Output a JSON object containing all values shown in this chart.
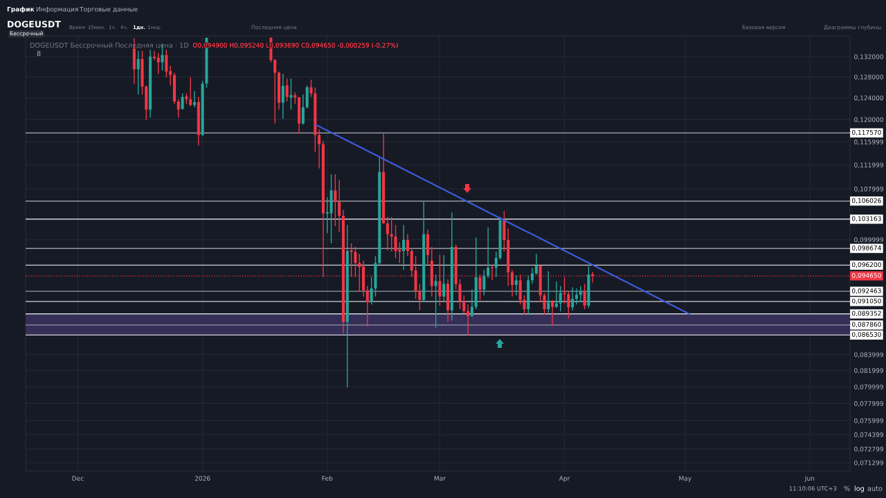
{
  "chart_data": {
    "type": "candlestick",
    "title": "DOGEUSDT Бессрочный Последняя цена · 1D",
    "subtitle": "O0,094900 H0,095240 L0,093690 C0,094650 -0,000259 (-0,27%)",
    "annotations": [
      "График",
      "Информация",
      "Торговые данные",
      "DOGEUSDT",
      "Бессрочный",
      "Время",
      "15мин.",
      "1ч.",
      "4ч.",
      "1дн.",
      "1нед.",
      "Последняя цена",
      "Базовая версия",
      "Диаграммы глубины",
      "11:10:06 UTC+3",
      "%",
      "log",
      "auto",
      "8"
    ],
    "x": [
      "2025-12-15",
      "2025-12-16",
      "2025-12-17",
      "2025-12-18",
      "2025-12-19",
      "2025-12-20",
      "2025-12-21",
      "2025-12-22",
      "2025-12-23",
      "2025-12-24",
      "2025-12-25",
      "2025-12-26",
      "2025-12-27",
      "2025-12-28",
      "2025-12-29",
      "2025-12-30",
      "2025-12-31",
      "2026-01-01",
      "2026-01-02",
      "2026-01-18",
      "2026-01-19",
      "2026-01-20",
      "2026-01-21",
      "2026-01-22",
      "2026-01-23",
      "2026-01-24",
      "2026-01-25",
      "2026-01-26",
      "2026-01-27",
      "2026-01-28",
      "2026-01-29",
      "2026-01-30",
      "2026-01-31",
      "2026-02-01",
      "2026-02-02",
      "2026-02-03",
      "2026-02-04",
      "2026-02-05",
      "2026-02-06",
      "2026-02-07",
      "2026-02-08",
      "2026-02-09",
      "2026-02-10",
      "2026-02-11",
      "2026-02-12",
      "2026-02-13",
      "2026-02-14",
      "2026-02-15",
      "2026-02-16",
      "2026-02-17",
      "2026-02-18",
      "2026-02-19",
      "2026-02-20",
      "2026-02-21",
      "2026-02-22",
      "2026-02-23",
      "2026-02-24",
      "2026-02-25",
      "2026-02-26",
      "2026-02-27",
      "2026-02-28",
      "2026-03-01",
      "2026-03-02",
      "2026-03-03",
      "2026-03-04",
      "2026-03-05",
      "2026-03-06",
      "2026-03-07",
      "2026-03-08",
      "2026-03-09",
      "2026-03-10",
      "2026-03-11",
      "2026-03-12",
      "2026-03-13",
      "2026-03-14",
      "2026-03-15",
      "2026-03-16",
      "2026-03-17",
      "2026-03-18",
      "2026-03-19",
      "2026-03-20",
      "2026-03-21",
      "2026-03-22",
      "2026-03-23",
      "2026-03-24",
      "2026-03-25",
      "2026-03-26",
      "2026-03-27",
      "2026-03-28",
      "2026-03-29",
      "2026-03-30",
      "2026-03-31",
      "2026-04-01",
      "2026-04-02",
      "2026-04-03",
      "2026-04-04",
      "2026-04-05",
      "2026-04-06",
      "2026-04-07",
      "2026-04-08"
    ],
    "ohlc": [
      [
        0.13363,
        0.13575,
        0.12658,
        0.12949
      ],
      [
        0.12949,
        0.13317,
        0.1246,
        0.13154
      ],
      [
        0.13154,
        0.13317,
        0.1246,
        0.12614
      ],
      [
        0.12614,
        0.12636,
        0.1199,
        0.1218
      ],
      [
        0.1218,
        0.1334,
        0.12032,
        0.13201
      ],
      [
        0.13201,
        0.13317,
        0.13131,
        0.13168
      ],
      [
        0.13177,
        0.1327,
        0.12859,
        0.13086
      ],
      [
        0.13086,
        0.13457,
        0.12926,
        0.13233
      ],
      [
        0.13233,
        0.1334,
        0.12791,
        0.12904
      ],
      [
        0.12913,
        0.13017,
        0.12636,
        0.12836
      ],
      [
        0.12836,
        0.12881,
        0.12287,
        0.1233
      ],
      [
        0.1233,
        0.12373,
        0.12032,
        0.1218
      ],
      [
        0.12193,
        0.12482,
        0.1218,
        0.12417
      ],
      [
        0.12425,
        0.12482,
        0.12287,
        0.12373
      ],
      [
        0.12373,
        0.12791,
        0.12244,
        0.12265
      ],
      [
        0.12265,
        0.12526,
        0.12223,
        0.12321
      ],
      [
        0.12321,
        0.12417,
        0.11537,
        0.1172
      ],
      [
        0.1172,
        0.12724,
        0.117,
        0.12671
      ],
      [
        0.12671,
        0.1359,
        0.12592,
        0.1358
      ],
      [
        0.1358,
        0.1359,
        0.13086,
        0.13131
      ],
      [
        0.13131,
        0.13154,
        0.11927,
        0.12881
      ],
      [
        0.12881,
        0.12904,
        0.1218,
        0.12308
      ],
      [
        0.12308,
        0.12859,
        0.12011,
        0.12627
      ],
      [
        0.12636,
        0.12769,
        0.1233,
        0.12417
      ],
      [
        0.12408,
        0.12769,
        0.1218,
        0.12451
      ],
      [
        0.12451,
        0.12504,
        0.12287,
        0.12408
      ],
      [
        0.12408,
        0.12417,
        0.11741,
        0.11927
      ],
      [
        0.11927,
        0.1246,
        0.11906,
        0.12223
      ],
      [
        0.12223,
        0.12636,
        0.12201,
        0.126
      ],
      [
        0.126,
        0.12747,
        0.12417,
        0.12482
      ],
      [
        0.12482,
        0.12592,
        0.11416,
        0.1172
      ],
      [
        0.1172,
        0.11823,
        0.1114,
        0.11557
      ],
      [
        0.11557,
        0.11618,
        0.09451,
        0.10406
      ],
      [
        0.10402,
        0.10664,
        0.10101,
        0.10424
      ],
      [
        0.10406,
        0.11043,
        0.09943,
        0.10776
      ],
      [
        0.10776,
        0.11043,
        0.10207,
        0.10589
      ],
      [
        0.10589,
        0.10947,
        0.10118,
        0.10369
      ],
      [
        0.10369,
        0.1046,
        0.08675,
        0.08828
      ],
      [
        0.08828,
        0.10225,
        0.0799,
        0.09829
      ],
      [
        0.09839,
        0.09943,
        0.09451,
        0.09815
      ],
      [
        0.09815,
        0.09891,
        0.09451,
        0.09652
      ],
      [
        0.09652,
        0.09788,
        0.09239,
        0.09591
      ],
      [
        0.09601,
        0.09685,
        0.09174,
        0.09261
      ],
      [
        0.09261,
        0.0932,
        0.08766,
        0.09094
      ],
      [
        0.09094,
        0.09451,
        0.09062,
        0.09287
      ],
      [
        0.09287,
        0.09753,
        0.09174,
        0.09652
      ],
      [
        0.09652,
        0.11337,
        0.09635,
        0.11082
      ],
      [
        0.11082,
        0.11741,
        0.10243,
        0.1025
      ],
      [
        0.1025,
        0.10351,
        0.09839,
        0.10083
      ],
      [
        0.10083,
        0.10351,
        0.09822,
        0.10048
      ],
      [
        0.10048,
        0.10225,
        0.09719,
        0.09829
      ],
      [
        0.09849,
        0.0996,
        0.09652,
        0.09822
      ],
      [
        0.09829,
        0.10225,
        0.09551,
        0.09995
      ],
      [
        0.09995,
        0.10083,
        0.09753,
        0.09829
      ],
      [
        0.09829,
        0.09874,
        0.09451,
        0.09544
      ],
      [
        0.09544,
        0.09753,
        0.09142,
        0.09255
      ],
      [
        0.09255,
        0.09352,
        0.08983,
        0.09126
      ],
      [
        0.09126,
        0.10608,
        0.09094,
        0.10083
      ],
      [
        0.10083,
        0.10154,
        0.09618,
        0.0977
      ],
      [
        0.09685,
        0.09891,
        0.09174,
        0.0932
      ],
      [
        0.0932,
        0.09484,
        0.08751,
        0.09392
      ],
      [
        0.09392,
        0.0977,
        0.09047,
        0.09174
      ],
      [
        0.09174,
        0.0977,
        0.09094,
        0.09352
      ],
      [
        0.09352,
        0.09418,
        0.08828,
        0.08983
      ],
      [
        0.08983,
        0.10424,
        0.08843,
        0.09891
      ],
      [
        0.09891,
        0.09925,
        0.09271,
        0.09346
      ],
      [
        0.09346,
        0.09418,
        0.08999,
        0.0911
      ],
      [
        0.0911,
        0.0919,
        0.08936,
        0.08974
      ],
      [
        0.08974,
        0.09062,
        0.08644,
        0.08905
      ],
      [
        0.08905,
        0.09271,
        0.0889,
        0.09031
      ],
      [
        0.09031,
        0.1003,
        0.08999,
        0.09444
      ],
      [
        0.09444,
        0.09484,
        0.09126,
        0.09271
      ],
      [
        0.09271,
        0.09551,
        0.0919,
        0.09468
      ],
      [
        0.09468,
        0.10189,
        0.09434,
        0.09584
      ],
      [
        0.09591,
        0.09618,
        0.09402,
        0.09578
      ],
      [
        0.09584,
        0.09822,
        0.09451,
        0.09726
      ],
      [
        0.09726,
        0.10351,
        0.09702,
        0.10297
      ],
      [
        0.10297,
        0.10442,
        0.09822,
        0.09995
      ],
      [
        0.09995,
        0.10172,
        0.0932,
        0.09517
      ],
      [
        0.09517,
        0.09551,
        0.09174,
        0.09336
      ],
      [
        0.09336,
        0.09468,
        0.0919,
        0.09402
      ],
      [
        0.09402,
        0.09484,
        0.09062,
        0.09126
      ],
      [
        0.09126,
        0.0919,
        0.08921,
        0.08999
      ],
      [
        0.08999,
        0.09468,
        0.08921,
        0.09402
      ],
      [
        0.09402,
        0.09584,
        0.09352,
        0.09501
      ],
      [
        0.09501,
        0.09788,
        0.09484,
        0.09611
      ],
      [
        0.09611,
        0.09618,
        0.09094,
        0.0919
      ],
      [
        0.0919,
        0.09222,
        0.08921,
        0.08999
      ],
      [
        0.08999,
        0.09534,
        0.08952,
        0.09088
      ],
      [
        0.09094,
        0.09126,
        0.08781,
        0.09031
      ],
      [
        0.09031,
        0.09385,
        0.09015,
        0.09078
      ],
      [
        0.09078,
        0.0932,
        0.08968,
        0.09222
      ],
      [
        0.09222,
        0.09451,
        0.09078,
        0.09206
      ],
      [
        0.09206,
        0.09239,
        0.08874,
        0.09024
      ],
      [
        0.09024,
        0.09303,
        0.08983,
        0.09142
      ],
      [
        0.09142,
        0.09287,
        0.09062,
        0.09197
      ],
      [
        0.09197,
        0.0932,
        0.09094,
        0.09239
      ],
      [
        0.09239,
        0.09352,
        0.08999,
        0.09047
      ],
      [
        0.09047,
        0.09601,
        0.09015,
        0.09484
      ],
      [
        0.0949,
        0.09524,
        0.09369,
        0.09465
      ]
    ],
    "series": [
      {
        "type": "line",
        "x": [
          "2026-01-29",
          "2026-05-02"
        ],
        "values": [
          0.1191,
          0.08935
        ],
        "color": "#3d5bd9"
      }
    ],
    "ref_lines": [
      {
        "axis": "y",
        "value": 0.11757,
        "label": "0,117570",
        "color": "#9598a1"
      },
      {
        "axis": "y",
        "value": 0.106026,
        "label": "0,106026",
        "color": "#9598a1"
      },
      {
        "axis": "y",
        "value": 0.103163,
        "label": "0,103163",
        "color": "#d1d4dc"
      },
      {
        "axis": "y",
        "value": 0.098674,
        "label": "0,098674",
        "color": "#9598a1"
      },
      {
        "axis": "y",
        "value": 0.0962,
        "label": "0,096200",
        "color": "#d1d4dc"
      },
      {
        "axis": "y",
        "value": 0.09465,
        "label": "0,094650",
        "color": "#f23645",
        "line_style": "dotted"
      },
      {
        "axis": "y",
        "value": 0.092463,
        "label": "0,092463",
        "color": "#9598a1"
      },
      {
        "axis": "y",
        "value": 0.09105,
        "label": "0,091050",
        "color": "#d1d4dc"
      },
      {
        "axis": "y",
        "value": 0.089352,
        "label": "0,089352",
        "color": "#d1d4dc"
      },
      {
        "axis": "y",
        "value": 0.08786,
        "label": "0,087860",
        "color": "#9598a1"
      },
      {
        "axis": "y",
        "value": 0.08653,
        "label": "0,086530",
        "color": "#d1d4dc"
      }
    ],
    "bands": [
      {
        "axis": "y",
        "from": 0.08653,
        "to": 0.089352,
        "color": "#3b3360"
      }
    ],
    "log": true,
    "grid": true,
    "xlim": [
      "2025-11-18",
      "2026-06-11"
    ],
    "xticks": [
      {
        "value": "2025-12-01",
        "label": "Dec"
      },
      {
        "value": "2026-01-01",
        "label": "2026"
      },
      {
        "value": "2026-02-01",
        "label": "Feb"
      },
      {
        "value": "2026-03-01",
        "label": "Mar"
      },
      {
        "value": "2026-04-01",
        "label": "Apr"
      },
      {
        "value": "2026-05-01",
        "label": "May"
      },
      {
        "value": "2026-06-01",
        "label": "Jun"
      }
    ],
    "ylim": [
      0.0704,
      0.1362
    ],
    "yticks": [
      {
        "value": 0.132,
        "label": "0,132000"
      },
      {
        "value": 0.128,
        "label": "0,128000"
      },
      {
        "value": 0.124,
        "label": "0,124000"
      },
      {
        "value": 0.12,
        "label": "0,120000"
      },
      {
        "value": 0.115999,
        "label": "0,115999"
      },
      {
        "value": 0.111999,
        "label": "0,111999"
      },
      {
        "value": 0.107999,
        "label": "0,107999"
      },
      {
        "value": 0.099999,
        "label": "0,099999"
      },
      {
        "value": 0.083999,
        "label": "0,083999"
      },
      {
        "value": 0.081999,
        "label": "0,081999"
      },
      {
        "value": 0.079999,
        "label": "0,079999"
      },
      {
        "value": 0.077999,
        "label": "0,077999"
      },
      {
        "value": 0.075999,
        "label": "0,075999"
      },
      {
        "value": 0.074399,
        "label": "0,074399"
      },
      {
        "value": 0.072799,
        "label": "0,072799"
      },
      {
        "value": 0.071299,
        "label": "0,071299"
      }
    ]
  }
}
